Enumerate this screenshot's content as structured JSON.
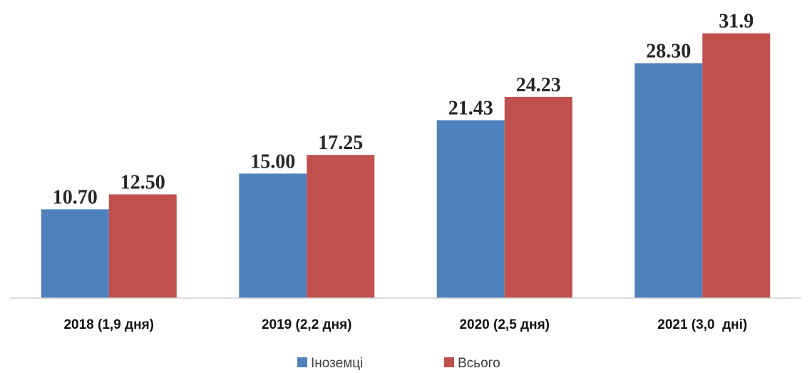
{
  "chart_data": {
    "type": "bar",
    "categories": [
      "2018 (1,9 дня)",
      "2019 (2,2 дня)",
      "2020 (2,5 дня)",
      "2021 (3,0  дні)"
    ],
    "series": [
      {
        "name": "Іноземці",
        "values": [
          10.7,
          15.0,
          21.43,
          28.3
        ],
        "labels": [
          "10.70",
          "15.00",
          "21.43",
          "28.30"
        ],
        "color": "#4f81bd"
      },
      {
        "name": "Всього",
        "values": [
          12.5,
          17.25,
          24.23,
          31.9
        ],
        "labels": [
          "12.50",
          "17.25",
          "24.23",
          "31.9"
        ],
        "color": "#c0504d"
      }
    ],
    "ylim": [
      0,
      35
    ],
    "grid": false,
    "legend_position": "bottom"
  }
}
